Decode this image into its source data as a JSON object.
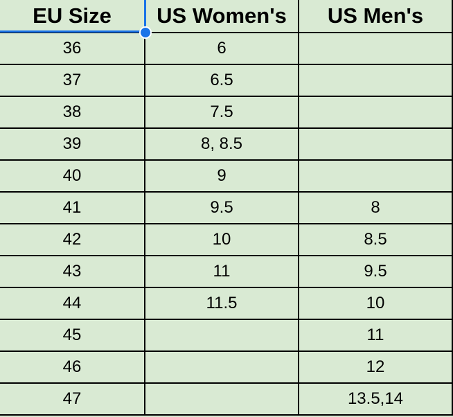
{
  "table": {
    "header": [
      "EU Size",
      "US Women's",
      "US Men's"
    ],
    "rows": [
      [
        "36",
        "6",
        null
      ],
      [
        "37",
        "6.5",
        null
      ],
      [
        "38",
        "7.5",
        null
      ],
      [
        "39",
        "8, 8.5",
        null
      ],
      [
        "40",
        "9",
        null
      ],
      [
        "41",
        "9.5",
        "8"
      ],
      [
        "42",
        "10",
        "8.5"
      ],
      [
        "43",
        "11",
        "9.5"
      ],
      [
        "44",
        "11.5",
        "10"
      ],
      [
        "45",
        null,
        "11"
      ],
      [
        "46",
        null,
        "12"
      ],
      [
        "47",
        null,
        "13.5,14"
      ]
    ]
  }
}
